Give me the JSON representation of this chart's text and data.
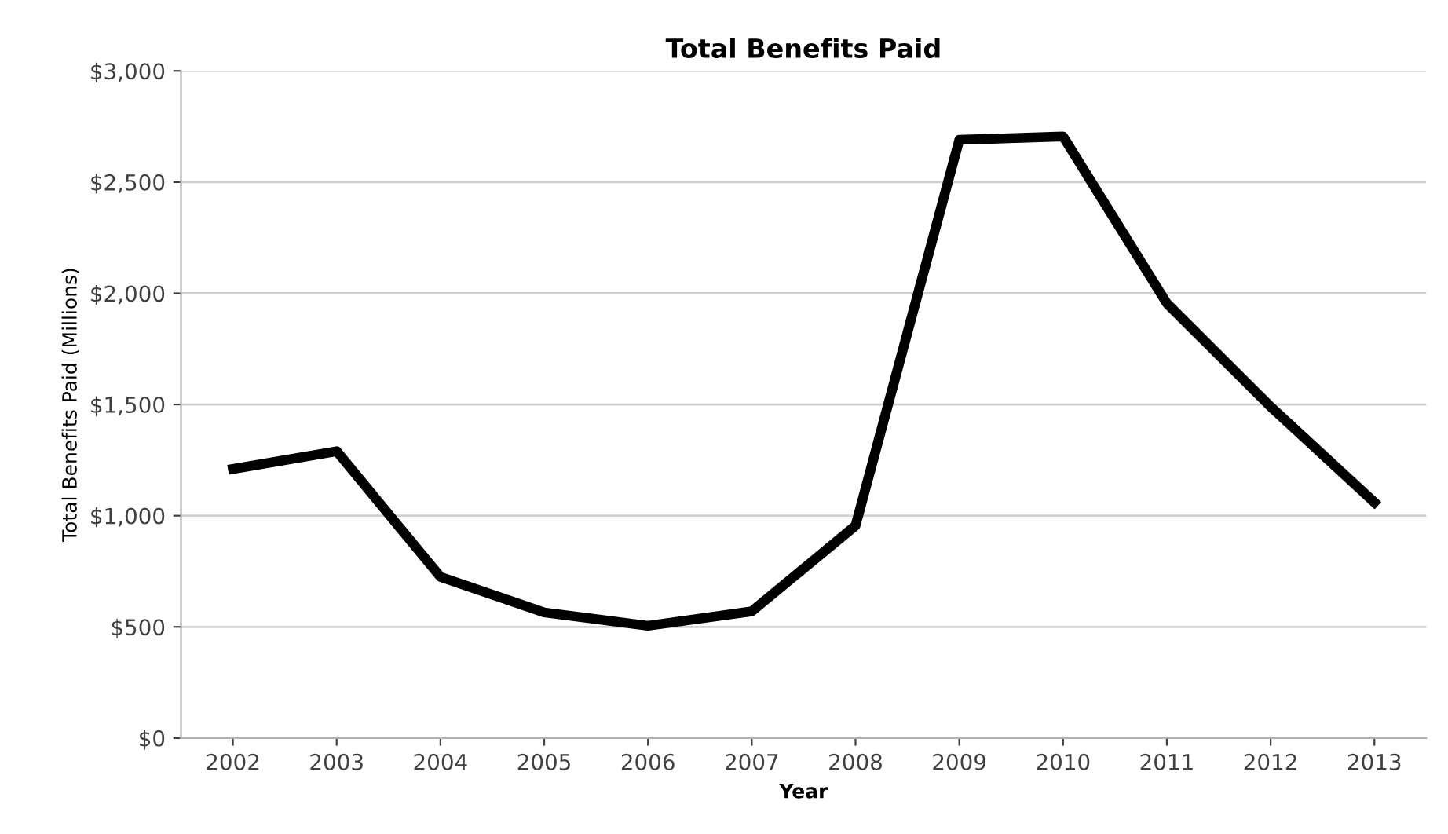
{
  "chart_data": {
    "type": "line",
    "title": "Total Benefits Paid",
    "xlabel": "Year",
    "ylabel": "Total Benefits Paid (Millions)",
    "categories": [
      "2002",
      "2003",
      "2004",
      "2005",
      "2006",
      "2007",
      "2008",
      "2009",
      "2010",
      "2011",
      "2012",
      "2013"
    ],
    "series": [
      {
        "color": "#000000",
        "values": [
          1210,
          1290,
          725,
          565,
          505,
          570,
          955,
          2690,
          2705,
          1955,
          1490,
          1060
        ]
      }
    ],
    "ylim": [
      0,
      3000
    ],
    "yticks": [
      {
        "value": 0,
        "label": "$0"
      },
      {
        "value": 500,
        "label": "$500"
      },
      {
        "value": 1000,
        "label": "$1,000"
      },
      {
        "value": 1500,
        "label": "$1,500"
      },
      {
        "value": 2000,
        "label": "$2,000"
      },
      {
        "value": 2500,
        "label": "$2,500"
      },
      {
        "value": 3000,
        "label": "$3,000"
      }
    ],
    "grid": "y",
    "legend": false,
    "marker": "none",
    "line_style": "solid"
  }
}
